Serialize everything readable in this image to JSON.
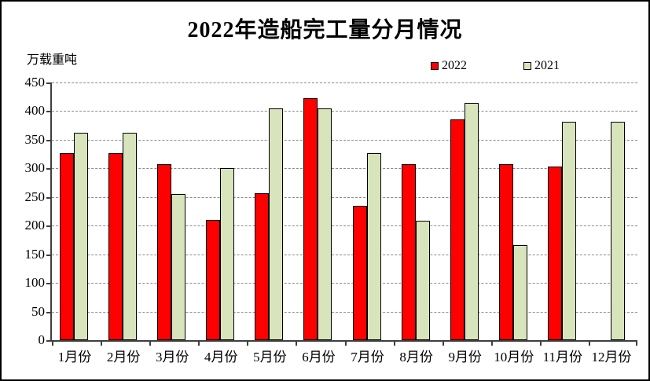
{
  "chart": {
    "title": "2022年造船完工量分月情况",
    "unit_label": "万载重吨"
  },
  "chart_data": {
    "type": "bar",
    "title": "2022年造船完工量分月情况",
    "ylabel": "万载重吨",
    "xlabel": "",
    "categories": [
      "1月份",
      "2月份",
      "3月份",
      "4月份",
      "5月份",
      "6月份",
      "7月份",
      "8月份",
      "9月份",
      "10月份",
      "11月份",
      "12月份"
    ],
    "series": [
      {
        "name": "2022",
        "color": "#ff0000",
        "values": [
          327,
          327,
          308,
          210,
          256,
          422,
          235,
          308,
          386,
          307,
          303,
          null
        ]
      },
      {
        "name": "2021",
        "color": "#d8e4bc",
        "values": [
          362,
          362,
          255,
          301,
          405,
          405,
          326,
          208,
          414,
          166,
          381,
          382
        ]
      }
    ],
    "ylim": [
      0,
      450
    ],
    "yticks": [
      0,
      50,
      100,
      150,
      200,
      250,
      300,
      350,
      400,
      450
    ],
    "grid": "horizontal-dashed",
    "legend_position": "top-right",
    "bar_border_color": "#000000",
    "axis_color": "#3f3f3f",
    "gridline_color": "#8a8a8a"
  }
}
